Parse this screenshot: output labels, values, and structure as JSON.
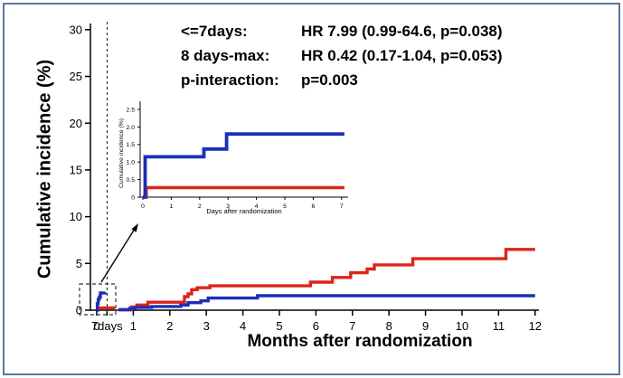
{
  "colors": {
    "red": "#df2318",
    "blue": "#1c2fb8",
    "frame_border": "#54799e",
    "axis": "#000000",
    "dashed": "#333333"
  },
  "annotation": {
    "rows": [
      {
        "label": "<=7days:",
        "value": "HR 7.99 (0.99-64.6, p=0.038)"
      },
      {
        "label": "8 days-max:",
        "value": "HR 0.42 (0.17-1.04, p=0.053)"
      },
      {
        "label": "p-interaction:",
        "value": "p=0.003"
      }
    ]
  },
  "chart_data": [
    {
      "type": "line",
      "name": "main",
      "title": "",
      "xlabel": "Months after randomization",
      "ylabel": "Cumulative incidence (%)",
      "xlim": [
        0,
        12.1
      ],
      "ylim": [
        0,
        31
      ],
      "grid": false,
      "legend": "none",
      "xticks": [
        {
          "v": 0,
          "l": "0"
        },
        {
          "v": 0.28,
          "l": "7days"
        },
        {
          "v": 1,
          "l": "1"
        },
        {
          "v": 2,
          "l": "2"
        },
        {
          "v": 3,
          "l": "3"
        },
        {
          "v": 4,
          "l": "4"
        },
        {
          "v": 5,
          "l": "5"
        },
        {
          "v": 6,
          "l": "6"
        },
        {
          "v": 7,
          "l": "7"
        },
        {
          "v": 8,
          "l": "8"
        },
        {
          "v": 9,
          "l": "9"
        },
        {
          "v": 10,
          "l": "10"
        },
        {
          "v": 11,
          "l": "11"
        },
        {
          "v": 12,
          "l": "12"
        }
      ],
      "yticks": [
        {
          "v": 0,
          "l": "0"
        },
        {
          "v": 5,
          "l": "5"
        },
        {
          "v": 10,
          "l": "10"
        },
        {
          "v": 15,
          "l": "15"
        },
        {
          "v": 20,
          "l": "20"
        },
        {
          "v": 25,
          "l": "25"
        },
        {
          "v": 30,
          "l": "30"
        }
      ],
      "series": [
        {
          "name": "red-first-7-days",
          "color": "#df2318",
          "width": 3.4,
          "step": true,
          "points": [
            [
              0,
              0
            ],
            [
              0.02,
              0.25
            ],
            [
              0.5,
              0.25
            ]
          ]
        },
        {
          "name": "blue-first-7-days",
          "color": "#1c2fb8",
          "width": 3.4,
          "step": true,
          "points": [
            [
              0,
              0
            ],
            [
              0.015,
              0.7
            ],
            [
              0.04,
              1.15
            ],
            [
              0.07,
              1.4
            ],
            [
              0.1,
              1.85
            ],
            [
              0.23,
              1.9
            ]
          ]
        },
        {
          "name": "red-after-7-days",
          "color": "#df2318",
          "width": 3.4,
          "step": true,
          "points": [
            [
              0.6,
              0.05
            ],
            [
              0.95,
              0.35
            ],
            [
              1.1,
              0.55
            ],
            [
              1.4,
              0.85
            ],
            [
              2.4,
              1.45
            ],
            [
              2.5,
              1.75
            ],
            [
              2.6,
              2.2
            ],
            [
              2.75,
              2.4
            ],
            [
              3.1,
              2.6
            ],
            [
              5.85,
              3.0
            ],
            [
              6.45,
              3.5
            ],
            [
              6.95,
              4.0
            ],
            [
              7.4,
              4.4
            ],
            [
              7.6,
              4.85
            ],
            [
              8.65,
              5.5
            ],
            [
              11.2,
              6.5
            ],
            [
              12,
              6.5
            ]
          ]
        },
        {
          "name": "blue-after-7-days",
          "color": "#1c2fb8",
          "width": 3.4,
          "step": true,
          "points": [
            [
              0.6,
              0.05
            ],
            [
              0.9,
              0.2
            ],
            [
              1.05,
              0.3
            ],
            [
              1.5,
              0.4
            ],
            [
              2.3,
              0.55
            ],
            [
              2.5,
              0.8
            ],
            [
              2.85,
              1.0
            ],
            [
              3.05,
              1.3
            ],
            [
              4.4,
              1.55
            ],
            [
              12,
              1.55
            ]
          ]
        }
      ]
    },
    {
      "type": "line",
      "name": "inset",
      "title": "",
      "xlabel": "Days after randomization",
      "ylabel": "Cumulative incidence (%)",
      "xlim": [
        0,
        7.2
      ],
      "ylim": [
        0,
        2.5
      ],
      "grid": false,
      "legend": "none",
      "xticks": [
        {
          "v": 0,
          "l": "0"
        },
        {
          "v": 1,
          "l": "1"
        },
        {
          "v": 2,
          "l": "2"
        },
        {
          "v": 3,
          "l": "3"
        },
        {
          "v": 4,
          "l": "4"
        },
        {
          "v": 5,
          "l": "5"
        },
        {
          "v": 6,
          "l": "6"
        },
        {
          "v": 7,
          "l": "7"
        }
      ],
      "yticks": [
        {
          "v": 0,
          "l": "0"
        },
        {
          "v": 0.5,
          "l": "0.5"
        },
        {
          "v": 1,
          "l": "1.0"
        },
        {
          "v": 1.5,
          "l": "1.5"
        },
        {
          "v": 2,
          "l": "2.0"
        },
        {
          "v": 2.5,
          "l": "2.5"
        }
      ],
      "series": [
        {
          "name": "red",
          "color": "#df2318",
          "width": 3.4,
          "step": true,
          "points": [
            [
              0,
              0
            ],
            [
              0.12,
              0.27
            ],
            [
              7.1,
              0.27
            ]
          ]
        },
        {
          "name": "blue",
          "color": "#1c2fb8",
          "width": 3.8,
          "step": true,
          "points": [
            [
              0,
              0
            ],
            [
              0.08,
              1.15
            ],
            [
              2.15,
              1.37
            ],
            [
              2.95,
              1.8
            ],
            [
              7.1,
              1.8
            ]
          ]
        }
      ]
    }
  ]
}
